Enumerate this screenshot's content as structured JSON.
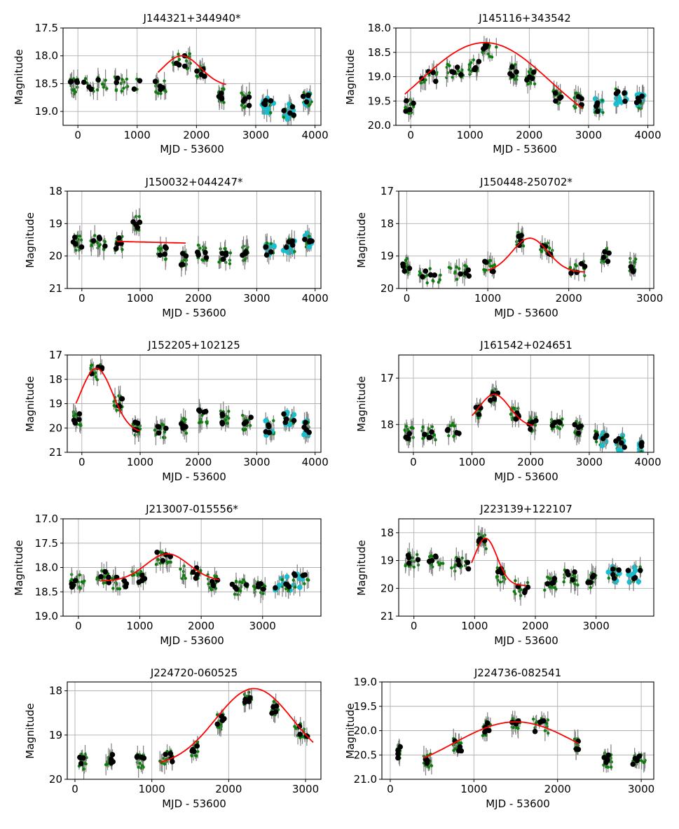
{
  "colors": {
    "errorbar": "#808080",
    "green": "#0a7d0a",
    "black": "#000000",
    "cyan": "#17bfcf",
    "fit": "#ff0000"
  },
  "chart_data": [
    {
      "type": "scatter",
      "title": "J144321+344940*",
      "xlabel": "MJD - 53600",
      "ylabel": "Magnitude",
      "xlim": [
        -250,
        4100
      ],
      "ylim": [
        19.25,
        17.5
      ],
      "xticks": [
        0,
        1000,
        2000,
        3000,
        4000
      ],
      "xtick_labels": [
        "0",
        "1000",
        "2000",
        "3000",
        "4000"
      ],
      "yticks": [
        17.5,
        18.0,
        18.5,
        19.0
      ],
      "ytick_labels": [
        "17.5",
        "18.0",
        "18.5",
        "19.0"
      ],
      "fit": {
        "kind": "bump",
        "x0": 1350,
        "x1": 2500,
        "base": 18.55,
        "peak": 18.0,
        "center": 1750,
        "width": 320
      },
      "groups": [
        {
          "x0": -150,
          "x1": 0,
          "y": 18.55
        },
        {
          "x0": 100,
          "x1": 500,
          "y": 18.5
        },
        {
          "x0": 550,
          "x1": 1050,
          "y": 18.5
        },
        {
          "x0": 1300,
          "x1": 1500,
          "y": 18.55
        },
        {
          "x0": 1600,
          "x1": 1900,
          "y": 18.1
        },
        {
          "x0": 2000,
          "x1": 2150,
          "y": 18.3
        },
        {
          "x0": 2350,
          "x1": 2500,
          "y": 18.7
        },
        {
          "x0": 2750,
          "x1": 2900,
          "y": 18.8
        },
        {
          "x0": 3100,
          "x1": 3300,
          "y": 18.9,
          "cyan": true
        },
        {
          "x0": 3450,
          "x1": 3650,
          "y": 19.0,
          "cyan": true
        },
        {
          "x0": 3800,
          "x1": 3950,
          "y": 18.8,
          "cyan": true
        }
      ]
    },
    {
      "type": "scatter",
      "title": "J145116+343542",
      "xlabel": "MJD - 53600",
      "ylabel": "Magnitude",
      "xlim": [
        -250,
        4100
      ],
      "ylim": [
        20.0,
        18.0
      ],
      "xticks": [
        0,
        1000,
        2000,
        3000,
        4000
      ],
      "xtick_labels": [
        "0",
        "1000",
        "2000",
        "3000",
        "4000"
      ],
      "yticks": [
        18.0,
        18.5,
        19.0,
        19.5,
        20.0
      ],
      "ytick_labels": [
        "18.0",
        "18.5",
        "19.0",
        "19.5",
        "20.0"
      ],
      "fit": {
        "kind": "bump",
        "x0": -100,
        "x1": 2900,
        "base": 20.3,
        "peak": 18.3,
        "center": 1250,
        "width": 1100
      },
      "groups": [
        {
          "x0": -100,
          "x1": 50,
          "y": 19.6
        },
        {
          "x0": 150,
          "x1": 450,
          "y": 19.0
        },
        {
          "x0": 600,
          "x1": 900,
          "y": 18.9
        },
        {
          "x0": 950,
          "x1": 1150,
          "y": 18.8
        },
        {
          "x0": 1200,
          "x1": 1450,
          "y": 18.45
        },
        {
          "x0": 1650,
          "x1": 1800,
          "y": 18.9
        },
        {
          "x0": 1950,
          "x1": 2100,
          "y": 19.0
        },
        {
          "x0": 2400,
          "x1": 2550,
          "y": 19.4
        },
        {
          "x0": 2750,
          "x1": 2900,
          "y": 19.5
        },
        {
          "x0": 3100,
          "x1": 3250,
          "y": 19.6,
          "cyan": true
        },
        {
          "x0": 3450,
          "x1": 3650,
          "y": 19.4,
          "cyan": true
        },
        {
          "x0": 3800,
          "x1": 3950,
          "y": 19.5,
          "cyan": true
        }
      ]
    },
    {
      "type": "scatter",
      "title": "J150032+044247*",
      "xlabel": "MJD - 53600",
      "ylabel": "Magnitude",
      "xlim": [
        -250,
        4100
      ],
      "ylim": [
        21.0,
        18.0
      ],
      "xticks": [
        0,
        1000,
        2000,
        3000,
        4000
      ],
      "xtick_labels": [
        "0",
        "1000",
        "2000",
        "3000",
        "4000"
      ],
      "yticks": [
        18,
        19,
        20,
        21
      ],
      "ytick_labels": [
        "18",
        "19",
        "20",
        "21"
      ],
      "fit": {
        "kind": "line",
        "x0": 600,
        "x1": 1780,
        "y0": 19.55,
        "y1": 19.6
      },
      "groups": [
        {
          "x0": -150,
          "x1": 0,
          "y": 19.6
        },
        {
          "x0": 150,
          "x1": 400,
          "y": 19.6
        },
        {
          "x0": 550,
          "x1": 700,
          "y": 19.6
        },
        {
          "x0": 850,
          "x1": 1000,
          "y": 19.0
        },
        {
          "x0": 1300,
          "x1": 1450,
          "y": 19.9
        },
        {
          "x0": 1700,
          "x1": 1800,
          "y": 20.1
        },
        {
          "x0": 1950,
          "x1": 2150,
          "y": 19.9
        },
        {
          "x0": 2350,
          "x1": 2550,
          "y": 20.0
        },
        {
          "x0": 2750,
          "x1": 2850,
          "y": 19.9
        },
        {
          "x0": 3150,
          "x1": 3300,
          "y": 19.8,
          "cyan": true
        },
        {
          "x0": 3450,
          "x1": 3650,
          "y": 19.7,
          "cyan": true
        },
        {
          "x0": 3800,
          "x1": 3950,
          "y": 19.5,
          "cyan": true
        }
      ]
    },
    {
      "type": "scatter",
      "title": "J150448-250702*",
      "xlabel": "MJD - 53600",
      "ylabel": "Magnitude",
      "xlim": [
        -100,
        3050
      ],
      "ylim": [
        20.0,
        17.0
      ],
      "xticks": [
        0,
        1000,
        2000,
        3000
      ],
      "xtick_labels": [
        "0",
        "1000",
        "2000",
        "3000"
      ],
      "yticks": [
        17,
        18,
        19,
        20
      ],
      "ytick_labels": [
        "17",
        "18",
        "19",
        "20"
      ],
      "fit": {
        "kind": "bump",
        "x0": 1000,
        "x1": 2200,
        "base": 19.5,
        "peak": 18.45,
        "center": 1520,
        "width": 220
      },
      "groups": [
        {
          "x0": -50,
          "x1": 50,
          "y": 19.3
        },
        {
          "x0": 150,
          "x1": 450,
          "y": 19.6
        },
        {
          "x0": 500,
          "x1": 800,
          "y": 19.5
        },
        {
          "x0": 950,
          "x1": 1100,
          "y": 19.3
        },
        {
          "x0": 1350,
          "x1": 1450,
          "y": 18.5
        },
        {
          "x0": 1650,
          "x1": 1800,
          "y": 18.8
        },
        {
          "x0": 2000,
          "x1": 2200,
          "y": 19.4
        },
        {
          "x0": 2400,
          "x1": 2500,
          "y": 19.0
        },
        {
          "x0": 2750,
          "x1": 2850,
          "y": 19.3
        }
      ]
    },
    {
      "type": "scatter",
      "title": "J152205+102125",
      "xlabel": "MJD - 53600",
      "ylabel": "Magnitude",
      "xlim": [
        -250,
        4100
      ],
      "ylim": [
        21.0,
        17.0
      ],
      "xticks": [
        0,
        1000,
        2000,
        3000,
        4000
      ],
      "xtick_labels": [
        "0",
        "1000",
        "2000",
        "3000",
        "4000"
      ],
      "yticks": [
        17,
        18,
        19,
        20,
        21
      ],
      "ytick_labels": [
        "17",
        "18",
        "19",
        "20",
        "21"
      ],
      "fit": {
        "kind": "bump",
        "x0": -100,
        "x1": 1000,
        "base": 20.2,
        "peak": 17.55,
        "center": 250,
        "width": 280
      },
      "groups": [
        {
          "x0": -150,
          "x1": 0,
          "y": 19.6
        },
        {
          "x0": 150,
          "x1": 350,
          "y": 17.7
        },
        {
          "x0": 550,
          "x1": 700,
          "y": 19.0
        },
        {
          "x0": 850,
          "x1": 1000,
          "y": 20.0
        },
        {
          "x0": 1250,
          "x1": 1450,
          "y": 20.1
        },
        {
          "x0": 1700,
          "x1": 1800,
          "y": 19.9
        },
        {
          "x0": 2000,
          "x1": 2150,
          "y": 19.5
        },
        {
          "x0": 2350,
          "x1": 2550,
          "y": 19.6
        },
        {
          "x0": 2750,
          "x1": 2900,
          "y": 19.8
        },
        {
          "x0": 3150,
          "x1": 3300,
          "y": 20.0,
          "cyan": true
        },
        {
          "x0": 3450,
          "x1": 3650,
          "y": 19.6,
          "cyan": true
        },
        {
          "x0": 3800,
          "x1": 3900,
          "y": 20.0,
          "cyan": true
        }
      ]
    },
    {
      "type": "scatter",
      "title": "J161542+024651",
      "xlabel": "MJD - 53600",
      "ylabel": "Magnitude",
      "xlim": [
        -250,
        4100
      ],
      "ylim": [
        18.6,
        16.5
      ],
      "xticks": [
        0,
        1000,
        2000,
        3000,
        4000
      ],
      "xtick_labels": [
        "0",
        "1000",
        "2000",
        "3000",
        "4000"
      ],
      "yticks": [
        17,
        18
      ],
      "ytick_labels": [
        "17",
        "18"
      ],
      "fit": {
        "kind": "bump",
        "x0": 1000,
        "x1": 2050,
        "base": 18.05,
        "peak": 17.35,
        "center": 1380,
        "width": 260
      },
      "groups": [
        {
          "x0": -150,
          "x1": 0,
          "y": 18.2
        },
        {
          "x0": 150,
          "x1": 400,
          "y": 18.2
        },
        {
          "x0": 550,
          "x1": 800,
          "y": 18.1
        },
        {
          "x0": 1050,
          "x1": 1150,
          "y": 17.7
        },
        {
          "x0": 1300,
          "x1": 1450,
          "y": 17.4
        },
        {
          "x0": 1650,
          "x1": 1800,
          "y": 17.8
        },
        {
          "x0": 1950,
          "x1": 2100,
          "y": 18.0
        },
        {
          "x0": 2350,
          "x1": 2550,
          "y": 18.0
        },
        {
          "x0": 2750,
          "x1": 2900,
          "y": 18.1
        },
        {
          "x0": 3100,
          "x1": 3300,
          "y": 18.3,
          "cyan": true
        },
        {
          "x0": 3450,
          "x1": 3600,
          "y": 18.4,
          "cyan": true
        },
        {
          "x0": 3850,
          "x1": 3900,
          "y": 18.5,
          "cyan": true
        }
      ]
    },
    {
      "type": "scatter",
      "title": "J213007-015556*",
      "xlabel": "MJD - 53600",
      "ylabel": "Magnitude",
      "xlim": [
        -250,
        3950
      ],
      "ylim": [
        19.0,
        17.0
      ],
      "xticks": [
        0,
        1000,
        2000,
        3000
      ],
      "xtick_labels": [
        "0",
        "1000",
        "2000",
        "3000"
      ],
      "yticks": [
        17.0,
        17.5,
        18.0,
        18.5,
        19.0
      ],
      "ytick_labels": [
        "17.0",
        "17.5",
        "18.0",
        "18.5",
        "19.0"
      ],
      "fit": {
        "kind": "bump",
        "x0": 350,
        "x1": 2300,
        "base": 18.28,
        "peak": 17.72,
        "center": 1450,
        "width": 350
      },
      "groups": [
        {
          "x0": -150,
          "x1": 100,
          "y": 18.3
        },
        {
          "x0": 300,
          "x1": 500,
          "y": 18.2
        },
        {
          "x0": 550,
          "x1": 800,
          "y": 18.3
        },
        {
          "x0": 850,
          "x1": 1100,
          "y": 18.2
        },
        {
          "x0": 1250,
          "x1": 1550,
          "y": 17.8
        },
        {
          "x0": 1650,
          "x1": 2000,
          "y": 18.1
        },
        {
          "x0": 2100,
          "x1": 2300,
          "y": 18.3
        },
        {
          "x0": 2500,
          "x1": 2750,
          "y": 18.4
        },
        {
          "x0": 2850,
          "x1": 3050,
          "y": 18.4
        },
        {
          "x0": 3200,
          "x1": 3450,
          "y": 18.35,
          "cyan": true
        },
        {
          "x0": 3500,
          "x1": 3750,
          "y": 18.25,
          "cyan": true
        }
      ]
    },
    {
      "type": "scatter",
      "title": "J223139+122107",
      "xlabel": "MJD - 53600",
      "ylabel": "Magnitude",
      "xlim": [
        -250,
        3950
      ],
      "ylim": [
        21.0,
        17.5
      ],
      "xticks": [
        0,
        1000,
        2000,
        3000
      ],
      "xtick_labels": [
        "0",
        "1000",
        "2000",
        "3000"
      ],
      "yticks": [
        18,
        19,
        20,
        21
      ],
      "ytick_labels": [
        "18",
        "19",
        "20",
        "21"
      ],
      "fit": {
        "kind": "bump",
        "x0": 950,
        "x1": 1850,
        "base": 19.9,
        "peak": 18.2,
        "center": 1180,
        "width": 190
      },
      "groups": [
        {
          "x0": -150,
          "x1": 100,
          "y": 19.0
        },
        {
          "x0": 250,
          "x1": 500,
          "y": 19.0
        },
        {
          "x0": 600,
          "x1": 900,
          "y": 19.1
        },
        {
          "x0": 1050,
          "x1": 1200,
          "y": 18.3
        },
        {
          "x0": 1350,
          "x1": 1500,
          "y": 19.5
        },
        {
          "x0": 1650,
          "x1": 1900,
          "y": 20.0
        },
        {
          "x0": 2150,
          "x1": 2350,
          "y": 19.8
        },
        {
          "x0": 2450,
          "x1": 2700,
          "y": 19.6
        },
        {
          "x0": 2850,
          "x1": 3000,
          "y": 19.7
        },
        {
          "x0": 3200,
          "x1": 3400,
          "y": 19.5,
          "cyan": true
        },
        {
          "x0": 3500,
          "x1": 3750,
          "y": 19.5,
          "cyan": true
        }
      ]
    },
    {
      "type": "scatter",
      "title": "J224720-060525",
      "xlabel": "MJD - 53600",
      "ylabel": "Magnitude",
      "xlim": [
        -100,
        3200
      ],
      "ylim": [
        20.0,
        17.8
      ],
      "xticks": [
        0,
        1000,
        2000,
        3000
      ],
      "xtick_labels": [
        "0",
        "1000",
        "2000",
        "3000"
      ],
      "yticks": [
        18,
        19,
        20
      ],
      "ytick_labels": [
        "18",
        "19",
        "20"
      ],
      "fit": {
        "kind": "bump",
        "x0": 1100,
        "x1": 3100,
        "base": 19.7,
        "peak": 17.95,
        "center": 2330,
        "width": 500
      },
      "groups": [
        {
          "x0": 50,
          "x1": 150,
          "y": 19.6
        },
        {
          "x0": 400,
          "x1": 500,
          "y": 19.5
        },
        {
          "x0": 800,
          "x1": 900,
          "y": 19.6
        },
        {
          "x0": 1100,
          "x1": 1300,
          "y": 19.5
        },
        {
          "x0": 1500,
          "x1": 1600,
          "y": 19.3
        },
        {
          "x0": 1850,
          "x1": 1950,
          "y": 18.7
        },
        {
          "x0": 2200,
          "x1": 2300,
          "y": 18.2
        },
        {
          "x0": 2550,
          "x1": 2650,
          "y": 18.4
        },
        {
          "x0": 2850,
          "x1": 3050,
          "y": 18.9
        }
      ]
    },
    {
      "type": "scatter",
      "title": "J224736-082541",
      "xlabel": "MJD - 53600",
      "ylabel": "Magnitude",
      "xlim": [
        -100,
        3150
      ],
      "ylim": [
        21.0,
        19.0
      ],
      "xticks": [
        0,
        1000,
        2000,
        3000
      ],
      "xtick_labels": [
        "0",
        "1000",
        "2000",
        "3000"
      ],
      "yticks": [
        19.0,
        19.5,
        20.0,
        20.5,
        21.0
      ],
      "ytick_labels": [
        "19.0",
        "19.5",
        "20.0",
        "20.5",
        "21.0"
      ],
      "fit": {
        "kind": "bump",
        "x0": 400,
        "x1": 2250,
        "base": 20.95,
        "peak": 19.82,
        "center": 1500,
        "width": 750
      },
      "groups": [
        {
          "x0": 80,
          "x1": 120,
          "y": 20.45
        },
        {
          "x0": 400,
          "x1": 500,
          "y": 20.6
        },
        {
          "x0": 750,
          "x1": 850,
          "y": 20.3
        },
        {
          "x0": 1100,
          "x1": 1200,
          "y": 19.95
        },
        {
          "x0": 1450,
          "x1": 1550,
          "y": 19.9
        },
        {
          "x0": 1700,
          "x1": 1900,
          "y": 19.9
        },
        {
          "x0": 2200,
          "x1": 2250,
          "y": 20.3
        },
        {
          "x0": 2550,
          "x1": 2650,
          "y": 20.6
        },
        {
          "x0": 2900,
          "x1": 3050,
          "y": 20.6
        }
      ]
    }
  ]
}
